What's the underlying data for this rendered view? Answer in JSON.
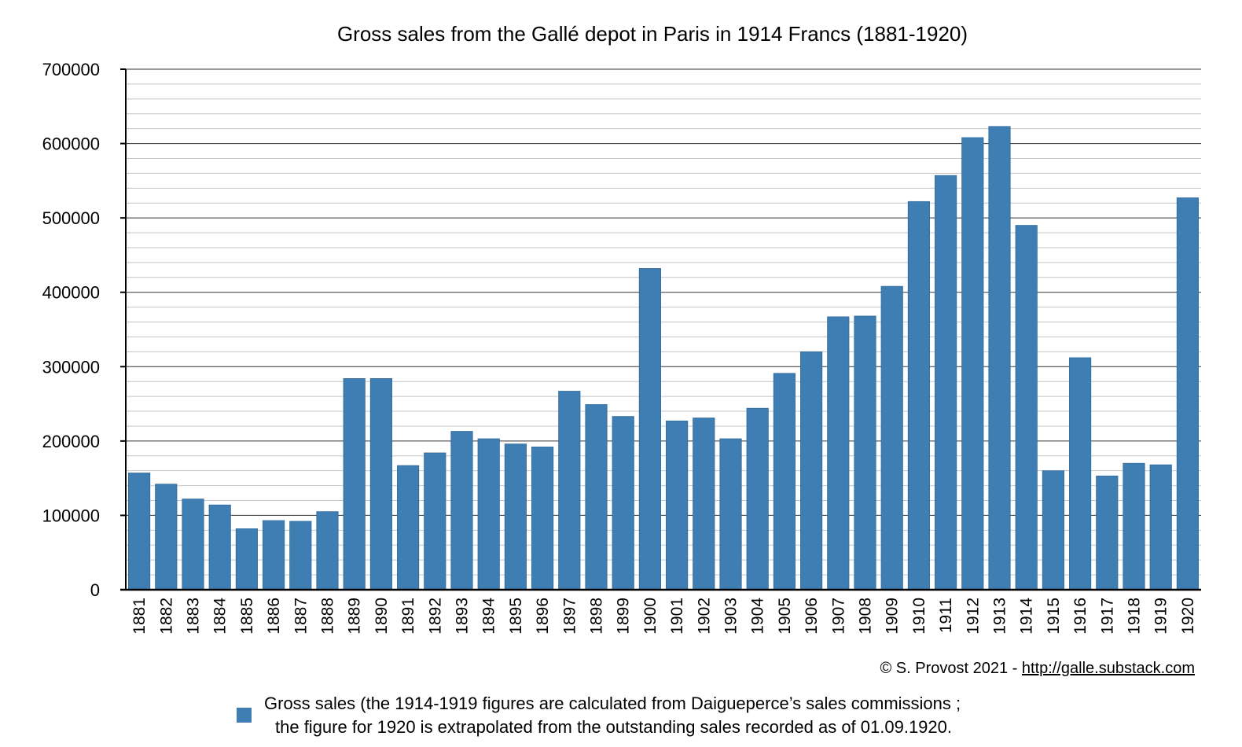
{
  "chart_data": {
    "type": "bar",
    "title": "Gross sales from the Gallé depot in Paris in 1914 Francs (1881-1920)",
    "xlabel": "",
    "ylabel": "",
    "ylim": [
      0,
      700000
    ],
    "y_ticks": [
      "0",
      "100000",
      "200000",
      "300000",
      "400000",
      "500000",
      "600000",
      "700000"
    ],
    "y_tick_values": [
      0,
      100000,
      200000,
      300000,
      400000,
      500000,
      600000,
      700000
    ],
    "y_minor_step": 20000,
    "grid": true,
    "legend_position": "bottom",
    "bar_color": "#3f7eb3",
    "categories": [
      "1881",
      "1882",
      "1883",
      "1884",
      "1885",
      "1886",
      "1887",
      "1888",
      "1889",
      "1890",
      "1891",
      "1892",
      "1893",
      "1894",
      "1895",
      "1896",
      "1897",
      "1898",
      "1899",
      "1900",
      "1901",
      "1902",
      "1903",
      "1904",
      "1905",
      "1906",
      "1907",
      "1908",
      "1909",
      "1910",
      "1911",
      "1912",
      "1913",
      "1914",
      "1915",
      "1916",
      "1917",
      "1918",
      "1919",
      "1920"
    ],
    "series": [
      {
        "name": "Gross sales (the 1914-1919 figures are calculated from Daigueperce’s sales commissions ; the figure for 1920 is extrapolated from the outstanding sales recorded as of 01.09.1920.",
        "values": [
          157000,
          142000,
          122000,
          114000,
          82000,
          93000,
          92000,
          105000,
          284000,
          284000,
          167000,
          184000,
          213000,
          203000,
          196000,
          192000,
          267000,
          249000,
          233000,
          432000,
          227000,
          231000,
          203000,
          244000,
          291000,
          320000,
          367000,
          368000,
          408000,
          522000,
          557000,
          608000,
          623000,
          490000,
          160000,
          312000,
          153000,
          170000,
          168000,
          527000
        ]
      }
    ],
    "legend": {
      "line1": "Gross sales (the 1914-1919 figures are calculated from Daigueperce’s sales commissions ;",
      "line2": "the figure for 1920 is extrapolated from the outstanding sales recorded as of 01.09.1920."
    },
    "credit": {
      "prefix": "© S. Provost 2021 - ",
      "link": "http://galle.substack.com"
    }
  }
}
